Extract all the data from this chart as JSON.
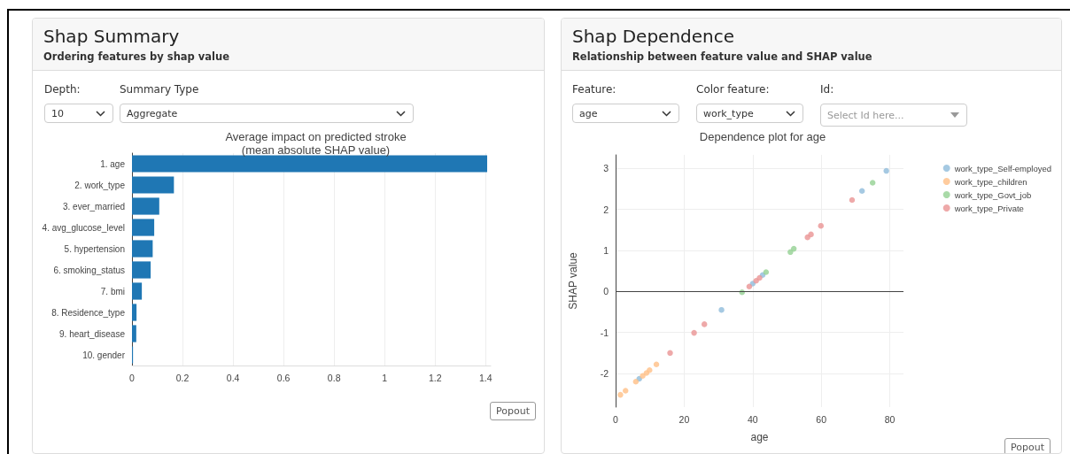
{
  "chart_data": [
    {
      "type": "bar",
      "title": "Shap Summary",
      "subtitle": "Ordering features by shap value",
      "orientation": "horizontal",
      "annotations": [
        "Average impact on predicted stroke\n(mean absolute SHAP value)",
        "Depth:",
        "10",
        "Summary Type",
        "Aggregate",
        "Popout"
      ],
      "categories": [
        "1. age",
        "2. work_type",
        "3. ever_married",
        "4. avg_glucose_level",
        "5. hypertension",
        "6. smoking_status",
        "7. bmi",
        "8. Residence_type",
        "9. heart_disease",
        "10. gender"
      ],
      "values": [
        1.406,
        0.166,
        0.108,
        0.088,
        0.082,
        0.074,
        0.039,
        0.018,
        0.017,
        0.004
      ],
      "color": "#1f77b4",
      "xlim": [
        0,
        1.42
      ],
      "xticks": [
        0,
        0.2,
        0.4,
        0.6,
        0.8,
        1,
        1.2,
        1.4
      ],
      "grid": "x"
    },
    {
      "type": "scatter",
      "title": "Shap Dependence",
      "subtitle": "Relationship between feature value and SHAP value",
      "annotations": [
        "Dependence plot for age",
        "Feature:",
        "age",
        "Color feature:",
        "work_type",
        "Id:",
        "Select Id here...",
        "Popout"
      ],
      "xlabel": "age",
      "ylabel": "SHAP value",
      "xlim": [
        0,
        84
      ],
      "xticks": [
        0,
        20,
        40,
        60,
        80
      ],
      "ylim": [
        -2.82,
        3.33
      ],
      "yticks": [
        -2,
        -1,
        0,
        1,
        2,
        3
      ],
      "grid": true,
      "legend": "top right",
      "marker": "circle",
      "ref_lines": [
        {
          "axis": "y",
          "value": 0,
          "label": null,
          "color": "#444444"
        }
      ],
      "series": [
        {
          "name": "work_type_Self-employed",
          "color": "#8ebbdb",
          "x": [
            6.9,
            30.9,
            40,
            42.9,
            71.9,
            79
          ],
          "values": [
            -2.13,
            -0.45,
            0.19,
            0.4,
            2.45,
            2.94
          ]
        },
        {
          "name": "work_type_children",
          "color": "#ffbf86",
          "x": [
            1.4,
            2.9,
            5.9,
            7.9,
            9,
            9.9,
            11.9
          ],
          "values": [
            -2.52,
            -2.42,
            -2.2,
            -2.06,
            -1.99,
            -1.92,
            -1.78
          ]
        },
        {
          "name": "work_type_Govt_job",
          "color": "#93d192",
          "x": [
            36.9,
            43.9,
            51,
            52,
            75
          ],
          "values": [
            -0.02,
            0.47,
            0.96,
            1.04,
            2.65
          ]
        },
        {
          "name": "work_type_Private",
          "color": "#ea9394",
          "x": [
            15.9,
            22.9,
            25.9,
            39,
            41,
            42,
            56,
            57,
            59.9,
            69
          ],
          "values": [
            -1.5,
            -1.01,
            -0.8,
            0.12,
            0.26,
            0.33,
            1.32,
            1.39,
            1.6,
            2.23
          ]
        }
      ]
    }
  ]
}
